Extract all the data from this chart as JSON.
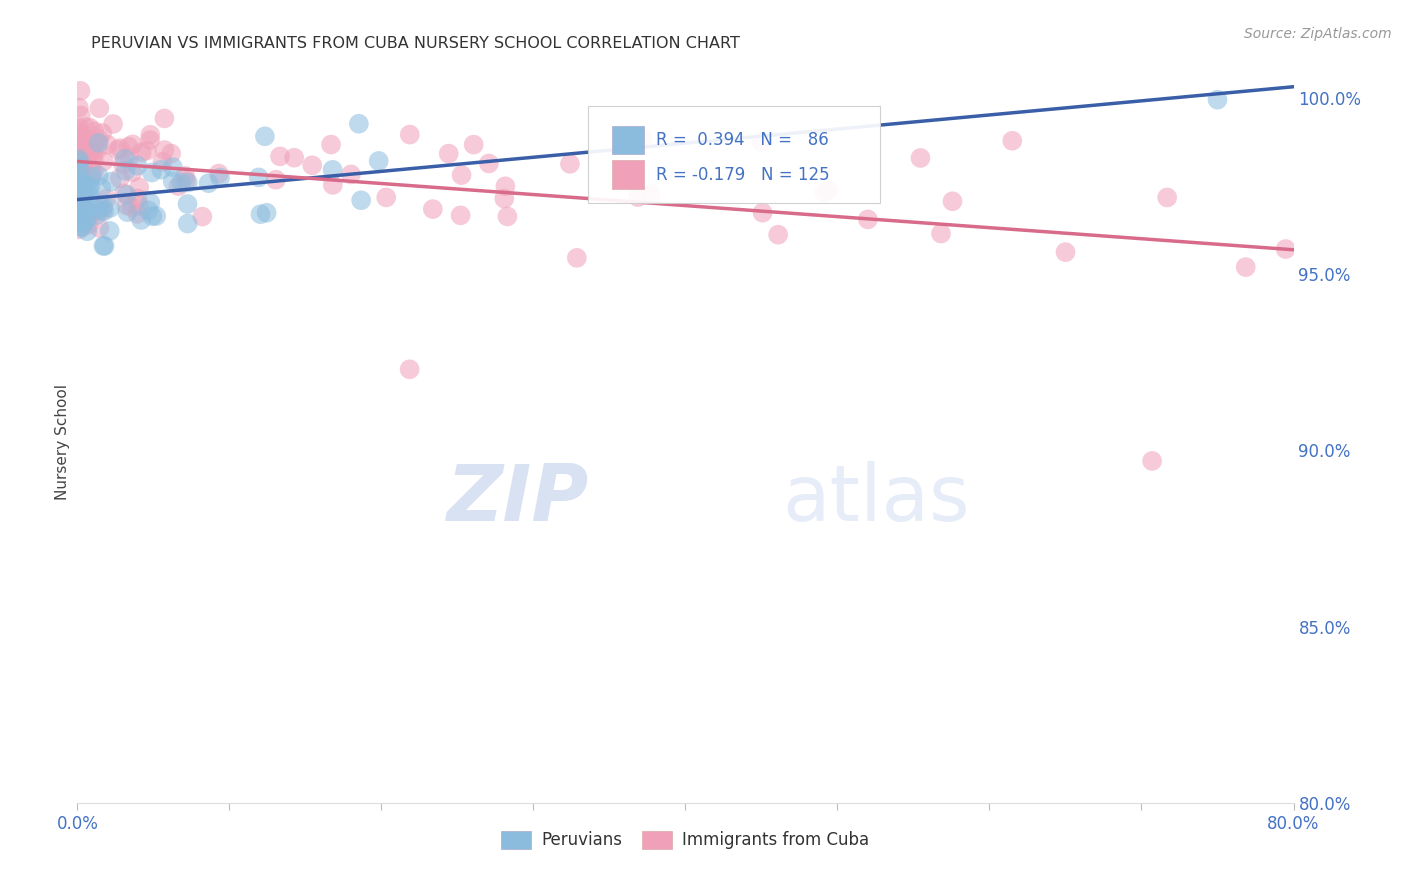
{
  "title": "PERUVIAN VS IMMIGRANTS FROM CUBA NURSERY SCHOOL CORRELATION CHART",
  "source": "Source: ZipAtlas.com",
  "ylabel": "Nursery School",
  "R1": 0.394,
  "N1": 86,
  "R2": -0.179,
  "N2": 125,
  "blue_color": "#8BBCDE",
  "pink_color": "#F0A0B8",
  "blue_line_color": "#3A5FA8",
  "pink_line_color": "#D96B8A",
  "title_color": "#333333",
  "tick_color": "#4472C4",
  "grid_color": "#CCCCCC",
  "watermark_text": "ZIPatlas",
  "background_color": "#FFFFFF",
  "legend_label1": "Peruvians",
  "legend_label2": "Immigrants from Cuba",
  "xlim": [
    0.0,
    0.8
  ],
  "ylim": [
    0.8,
    1.005
  ],
  "yticks": [
    0.8,
    0.85,
    0.9,
    0.95,
    1.0
  ],
  "ytick_labels": [
    "80.0%",
    "85.0%",
    "90.0%",
    "95.0%",
    "100.0%"
  ]
}
